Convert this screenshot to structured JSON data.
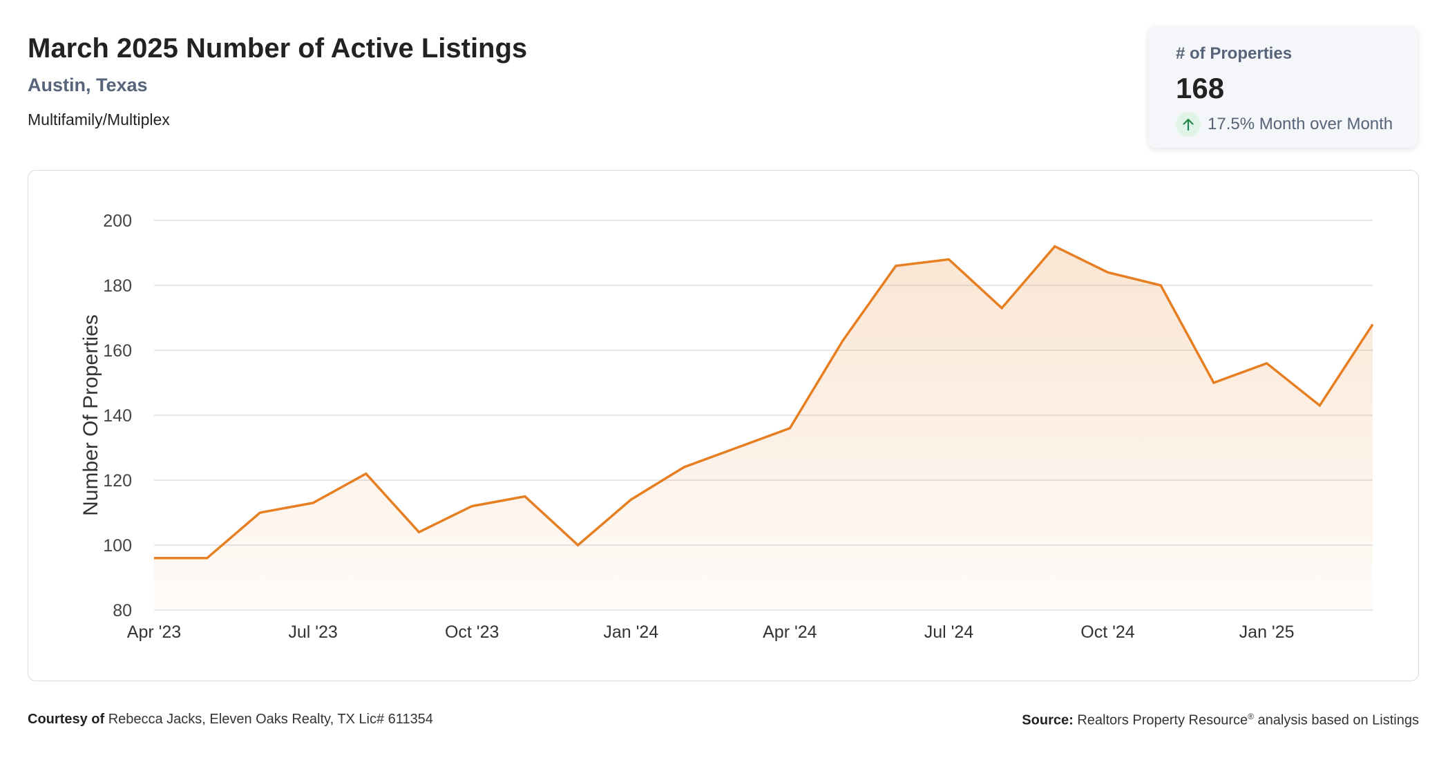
{
  "header": {
    "title": "March 2025 Number of Active Listings",
    "location": "Austin, Texas",
    "property_type": "Multifamily/Multiplex"
  },
  "stat_card": {
    "label": "# of Properties",
    "value": "168",
    "change": "17.5% Month over Month",
    "direction_icon": "arrow-up-icon",
    "positive_color": "#1f8a4c"
  },
  "chart_data": {
    "type": "area",
    "title": "",
    "xlabel": "",
    "ylabel": "Number Of Properties",
    "ylim": [
      80,
      200
    ],
    "yticks": [
      80,
      100,
      120,
      140,
      160,
      180,
      200
    ],
    "grid": true,
    "x": [
      "Apr '23",
      "May '23",
      "Jun '23",
      "Jul '23",
      "Aug '23",
      "Sep '23",
      "Oct '23",
      "Nov '23",
      "Dec '23",
      "Jan '24",
      "Feb '24",
      "Mar '24",
      "Apr '24",
      "May '24",
      "Jun '24",
      "Jul '24",
      "Aug '24",
      "Sep '24",
      "Oct '24",
      "Nov '24",
      "Dec '24",
      "Jan '25",
      "Feb '25",
      "Mar '25"
    ],
    "xtick_labels": [
      "Apr '23",
      "Jul '23",
      "Oct '23",
      "Jan '24",
      "Apr '24",
      "Jul '24",
      "Oct '24",
      "Jan '25"
    ],
    "series": [
      {
        "values": [
          96,
          96,
          110,
          113,
          122,
          104,
          112,
          115,
          100,
          114,
          124,
          130,
          136,
          163,
          186,
          188,
          173,
          192,
          184,
          180,
          150,
          156,
          143,
          168
        ],
        "color": "#e67e22"
      }
    ]
  },
  "footer": {
    "courtesy_label": "Courtesy of",
    "courtesy_text": "Rebecca Jacks, Eleven Oaks Realty, TX Lic# 611354",
    "source_label": "Source:",
    "source_text": "Realtors Property Resource",
    "source_mark": "®",
    "source_suffix": " analysis based on Listings"
  }
}
